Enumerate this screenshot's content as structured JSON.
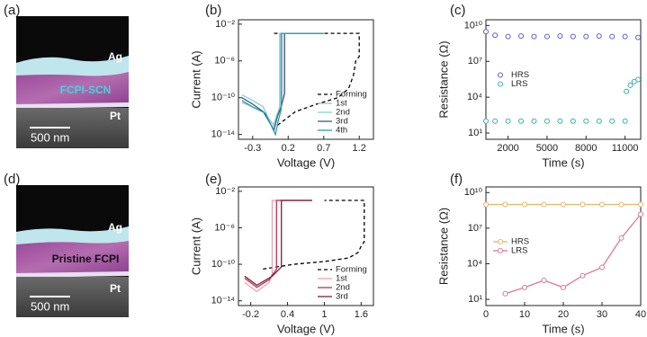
{
  "images": [
    {
      "panel_label": "(a)",
      "labels": [
        "Ag",
        "FCPI-SCN",
        "Pt"
      ],
      "scale_bar": "500 nm"
    },
    {
      "panel_label": "(d)",
      "labels": [
        "Ag",
        "Pristine FCPI",
        "Pt"
      ],
      "scale_bar": "500 nm"
    }
  ],
  "chart_data": [
    {
      "panel_label": "(b)",
      "type": "line",
      "x_label": "Voltage (V)",
      "y_label": "Current (A)",
      "log_y": true,
      "xlim": [
        -0.5,
        1.4
      ],
      "ylim": [
        3e-15,
        0.03
      ],
      "xticks": [
        -0.3,
        0.2,
        0.7,
        1.2
      ],
      "yticks": [
        {
          "value": 0.01,
          "label": "10⁻²"
        },
        {
          "value": 1e-06,
          "label": "10⁻⁶"
        },
        {
          "value": 1e-10,
          "label": "10⁻¹⁰"
        },
        {
          "value": 1e-14,
          "label": "10⁻¹⁴"
        }
      ],
      "legend": "lower right",
      "series": [
        {
          "name": "Forming",
          "color": "#000000",
          "dashed": true,
          "x": [
            0.05,
            0.3,
            0.6,
            0.9,
            1.05,
            1.12,
            1.15,
            1.2,
            1.2,
            0.6,
            0.0
          ],
          "values": [
            1e-13,
            3e-12,
            2e-11,
            1e-10,
            1e-09,
            3e-08,
            1e-06,
            3e-06,
            0.001,
            0.001,
            0.001
          ]
        },
        {
          "name": "1st",
          "color": "#b4b4cc",
          "x": [
            -0.45,
            -0.3,
            -0.15,
            0.0,
            0.05,
            0.1,
            0.12,
            0.12,
            0.7
          ],
          "values": [
            3e-11,
            1e-11,
            3e-12,
            1e-13,
            1e-12,
            1e-11,
            5e-11,
            0.001,
            0.001
          ]
        },
        {
          "name": "2nd",
          "color": "#7fd6d0",
          "x": [
            -0.45,
            -0.3,
            -0.15,
            -0.02,
            0.05,
            0.08,
            0.08,
            0.7
          ],
          "values": [
            2e-10,
            5e-11,
            1e-11,
            5e-14,
            2e-12,
            1e-11,
            0.001,
            0.001
          ]
        },
        {
          "name": "3rd",
          "color": "#3a5a8c",
          "x": [
            -0.45,
            -0.3,
            -0.15,
            0.0,
            0.05,
            0.1,
            0.15,
            0.15,
            0.7
          ],
          "values": [
            1e-10,
            2e-11,
            3e-12,
            3e-14,
            1e-12,
            1e-11,
            3e-10,
            0.001,
            0.001
          ]
        },
        {
          "name": "4th",
          "color": "#2a9fa8",
          "x": [
            -0.45,
            -0.3,
            -0.12,
            0.02,
            0.06,
            0.1,
            0.1,
            0.7
          ],
          "values": [
            5e-11,
            1e-11,
            2e-12,
            1e-14,
            3e-13,
            5e-12,
            0.001,
            0.001
          ]
        }
      ]
    },
    {
      "panel_label": "(c)",
      "type": "scatter",
      "x_label": "Time (s)",
      "y_label": "Resistance (Ω)",
      "log_y": true,
      "xlim": [
        300,
        12200
      ],
      "ylim": [
        3,
        30000000000.0
      ],
      "xticks": [
        2000,
        5000,
        8000,
        11000
      ],
      "yticks": [
        {
          "value": 10,
          "label": "10¹"
        },
        {
          "value": 10000,
          "label": "10⁴"
        },
        {
          "value": 10000000,
          "label": "10⁷"
        },
        {
          "value": 10000000000,
          "label": "10¹⁰"
        }
      ],
      "legend": "center left",
      "series": [
        {
          "name": "HRS",
          "color": "#5b5bd6",
          "x": [
            300,
            1000,
            2000,
            3000,
            4000,
            5000,
            6000,
            7000,
            8000,
            9000,
            10000,
            11000,
            12000
          ],
          "values": [
            3000000000.0,
            1500000000.0,
            1200000000.0,
            1300000000.0,
            1200000000.0,
            1200000000.0,
            1300000000.0,
            1200000000.0,
            1200000000.0,
            1300000000.0,
            1200000000.0,
            1200000000.0,
            1000000000.0
          ]
        },
        {
          "name": "LRS",
          "color": "#2fb5a5",
          "x": [
            300,
            1000,
            2000,
            3000,
            4000,
            5000,
            6000,
            7000,
            8000,
            9000,
            10000,
            11000,
            11100,
            11400,
            11700,
            12000
          ],
          "values": [
            100,
            100,
            100,
            100,
            100,
            100,
            100,
            100,
            100,
            100,
            100,
            100,
            30000,
            100000,
            200000,
            300000
          ]
        }
      ]
    },
    {
      "panel_label": "(e)",
      "type": "line",
      "x_label": "Voltage (V)",
      "y_label": "Current (A)",
      "log_y": true,
      "xlim": [
        -0.4,
        1.8
      ],
      "ylim": [
        3e-15,
        0.03
      ],
      "xticks": [
        -0.2,
        0.4,
        1.0,
        1.6
      ],
      "yticks": [
        {
          "value": 0.01,
          "label": "10⁻²"
        },
        {
          "value": 1e-06,
          "label": "10⁻⁶"
        },
        {
          "value": 1e-10,
          "label": "10⁻¹⁰"
        },
        {
          "value": 1e-14,
          "label": "10⁻¹⁴"
        }
      ],
      "legend": "lower right",
      "series": [
        {
          "name": "Forming",
          "color": "#000000",
          "dashed": true,
          "x": [
            0.0,
            0.5,
            1.0,
            1.4,
            1.55,
            1.6,
            1.65,
            1.65,
            1.0
          ],
          "values": [
            3e-11,
            1e-10,
            2e-10,
            5e-10,
            2e-09,
            1e-08,
            3e-08,
            0.001,
            0.001
          ]
        },
        {
          "name": "1st",
          "color": "#e7a3b0",
          "x": [
            -0.3,
            -0.1,
            0.1,
            0.15,
            0.15,
            0.8
          ],
          "values": [
            1e-12,
            1e-13,
            1e-12,
            1e-11,
            0.001,
            0.001
          ]
        },
        {
          "name": "2nd",
          "color": "#c0304a",
          "x": [
            -0.3,
            -0.1,
            0.1,
            0.22,
            0.22,
            0.8
          ],
          "values": [
            3e-12,
            3e-13,
            2e-12,
            3e-11,
            0.001,
            0.001
          ]
        },
        {
          "name": "3rd",
          "color": "#7a1f38",
          "x": [
            -0.3,
            -0.1,
            0.15,
            0.3,
            0.3,
            0.8
          ],
          "values": [
            5e-12,
            5e-13,
            5e-12,
            5e-11,
            0.001,
            0.001
          ]
        }
      ]
    },
    {
      "panel_label": "(f)",
      "type": "line",
      "markers": true,
      "x_label": "Time (s)",
      "y_label": "Resistance (Ω)",
      "log_y": true,
      "xlim": [
        0,
        40
      ],
      "ylim": [
        3,
        30000000000.0
      ],
      "xticks": [
        0,
        10,
        20,
        30,
        40
      ],
      "yticks": [
        {
          "value": 10,
          "label": "10¹"
        },
        {
          "value": 10000,
          "label": "10⁴"
        },
        {
          "value": 10000000,
          "label": "10⁷"
        },
        {
          "value": 10000000000,
          "label": "10¹⁰"
        }
      ],
      "legend": "center left",
      "series": [
        {
          "name": "HRS",
          "color": "#e8b46a",
          "x": [
            0,
            5,
            10,
            15,
            20,
            25,
            30,
            35,
            40
          ],
          "values": [
            1000000000.0,
            1000000000.0,
            1000000000.0,
            1000000000.0,
            1000000000.0,
            1000000000.0,
            1000000000.0,
            1000000000.0,
            1000000000.0
          ]
        },
        {
          "name": "LRS",
          "color": "#d97a96",
          "x": [
            5,
            10,
            15,
            20,
            25,
            30,
            35,
            40
          ],
          "values": [
            30,
            100,
            400,
            100,
            1000,
            5000,
            1500000,
            150000000
          ]
        }
      ]
    }
  ]
}
